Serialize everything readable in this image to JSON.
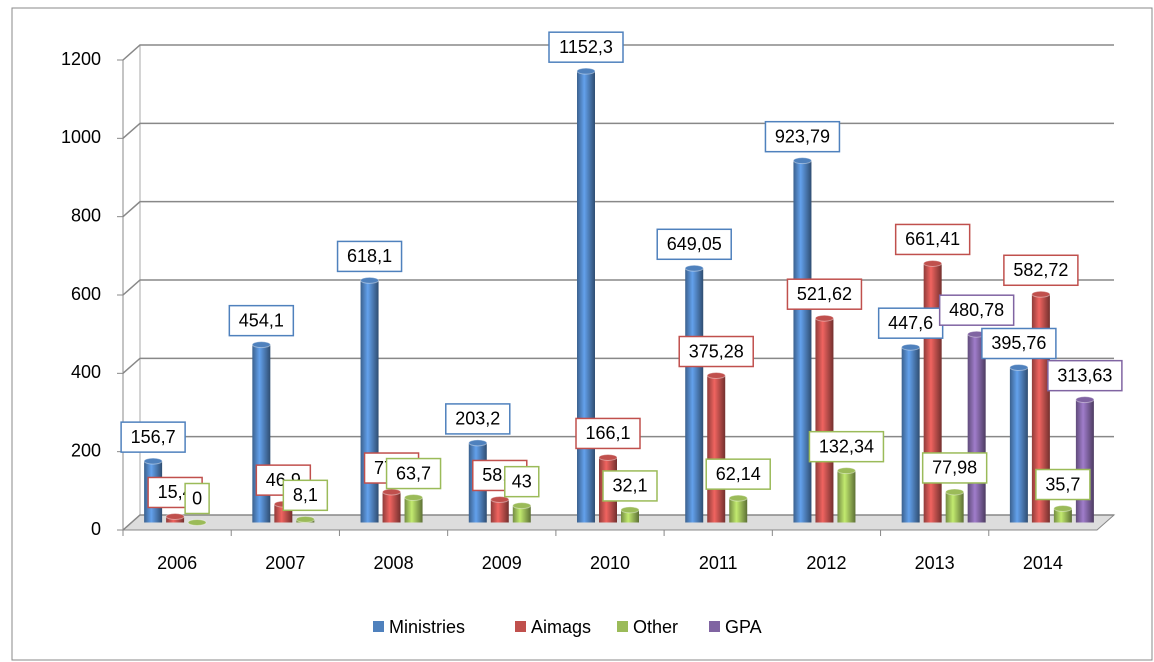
{
  "chart_data": {
    "type": "bar",
    "categories": [
      "2006",
      "2007",
      "2008",
      "2009",
      "2010",
      "2011",
      "2012",
      "2013",
      "2014"
    ],
    "series": [
      {
        "name": "Ministries",
        "color": "#4f81bd",
        "values": [
          156.7,
          454.1,
          618.1,
          203.2,
          1152.3,
          649.05,
          923.79,
          447.6,
          395.76
        ],
        "value_labels": [
          "156,7",
          "454,1",
          "618,1",
          "203,2",
          "1152,3",
          "649,05",
          "923,79",
          "447,6",
          "395,76"
        ]
      },
      {
        "name": "Aimags",
        "color": "#c0504d",
        "values": [
          15.4,
          46.9,
          77.8,
          58.8,
          166.1,
          375.28,
          521.62,
          661.41,
          582.72
        ],
        "value_labels": [
          "15,4",
          "46,9",
          "77,8",
          "58,8",
          "166,1",
          "375,28",
          "521,62",
          "661,41",
          "582,72"
        ]
      },
      {
        "name": "Other",
        "color": "#9bbb59",
        "values": [
          0,
          8.1,
          63.7,
          43,
          32.1,
          62.14,
          132.34,
          77.98,
          35.7
        ],
        "value_labels": [
          "0",
          "8,1",
          "63,7",
          "43",
          "32,1",
          "62,14",
          "132,34",
          "77,98",
          "35,7"
        ]
      },
      {
        "name": "GPA",
        "color": "#8064a2",
        "values": [
          null,
          null,
          null,
          null,
          null,
          null,
          null,
          480.78,
          313.63
        ],
        "value_labels": [
          null,
          null,
          null,
          null,
          null,
          null,
          null,
          "480,78",
          "313,63"
        ]
      }
    ],
    "ylim": [
      0,
      1200
    ],
    "yticks": [
      0,
      200,
      400,
      600,
      800,
      1000,
      1200
    ],
    "grid": true,
    "legend": "bottom"
  }
}
